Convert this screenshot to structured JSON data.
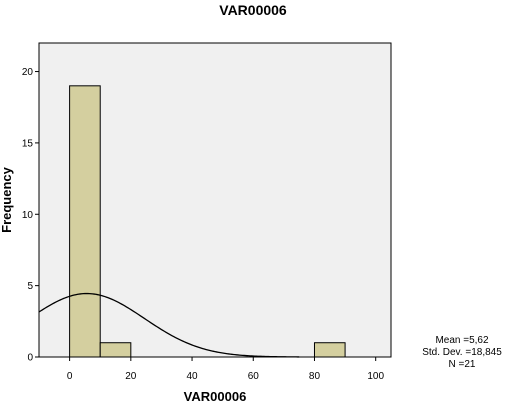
{
  "chart_data": {
    "type": "bar",
    "title": "VAR00006",
    "xlabel": "VAR00006",
    "ylabel": "Frequency",
    "xlim": [
      -10,
      105
    ],
    "ylim": [
      0,
      22
    ],
    "bins": [
      {
        "x0": 0,
        "x1": 10,
        "count": 19
      },
      {
        "x0": 10,
        "x1": 20,
        "count": 1
      },
      {
        "x0": 80,
        "x1": 90,
        "count": 1
      }
    ],
    "x_ticks": [
      0,
      20,
      40,
      60,
      80,
      100
    ],
    "y_ticks": [
      0,
      5,
      10,
      15,
      20
    ],
    "normal_curve": {
      "mean": 5.62,
      "std": 18.845,
      "n": 21,
      "bin_width": 10
    },
    "grid": false,
    "plot_background": "#f0f0f0",
    "bar_color": "#d4cf9f",
    "stats": {
      "mean": "Mean =5,62",
      "std": "Std. Dev. =18,845",
      "n": "N =21"
    }
  }
}
